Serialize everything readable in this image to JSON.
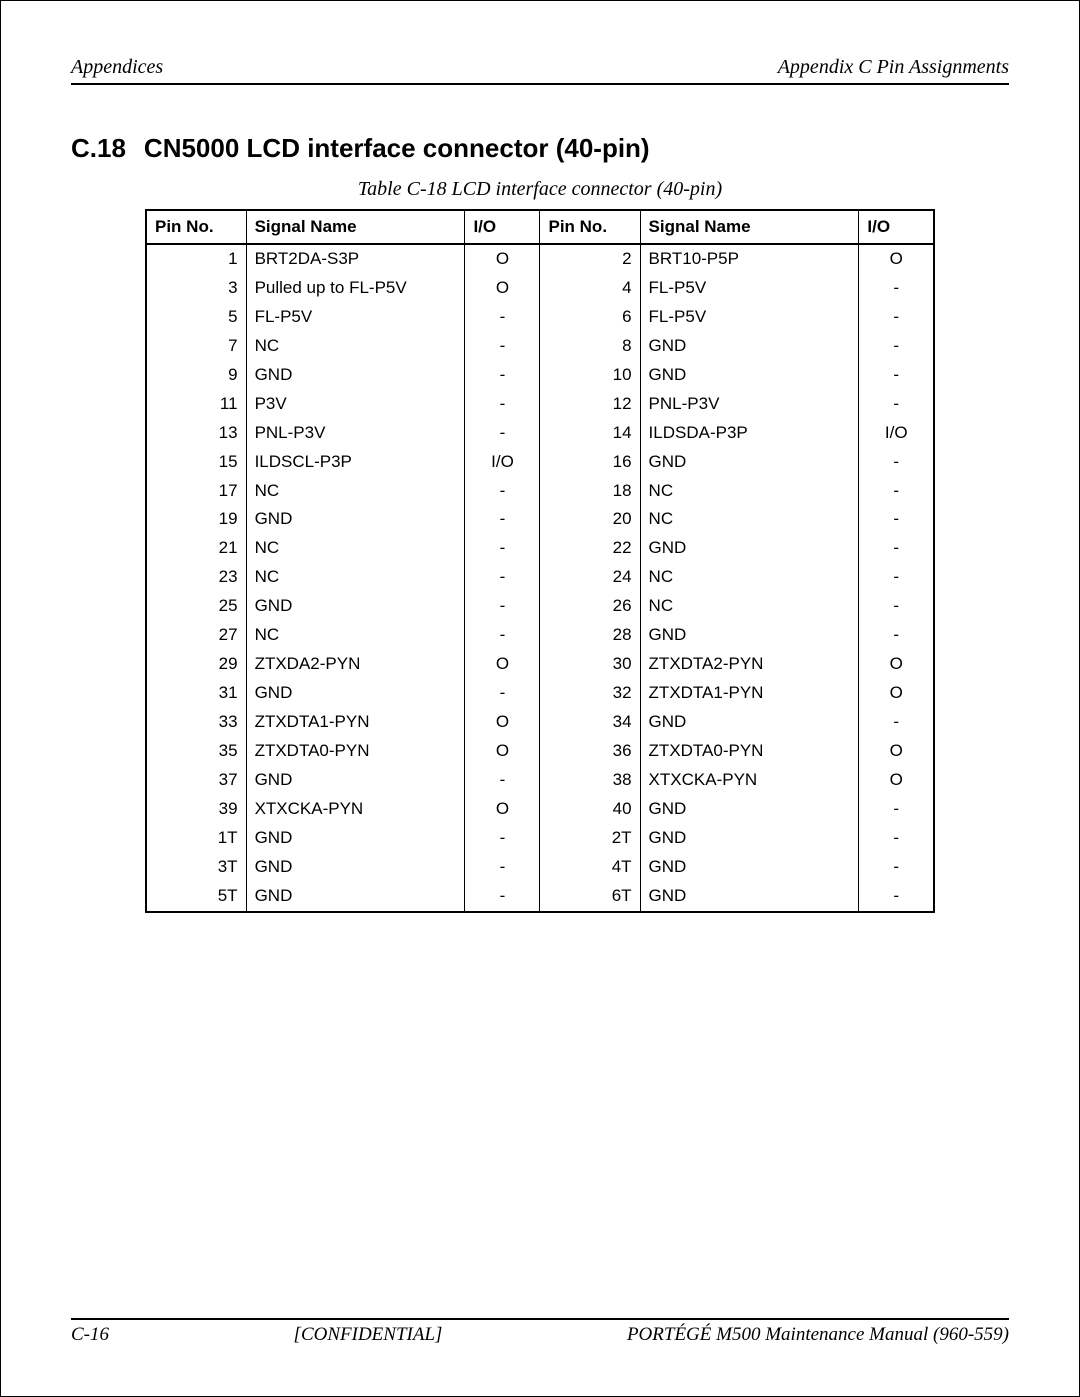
{
  "header": {
    "left": "Appendices",
    "right": "Appendix C  Pin Assignments"
  },
  "section": {
    "number": "C.18",
    "title": "CN5000  LCD interface connector (40-pin)"
  },
  "table": {
    "caption": "Table  C-18  LCD  interface connector (40-pin)",
    "columns": [
      "Pin No.",
      "Signal Name",
      "I/O",
      "Pin No.",
      "Signal Name",
      "I/O"
    ],
    "rows": [
      [
        "1",
        "BRT2DA-S3P",
        "O",
        "2",
        "BRT10-P5P",
        "O"
      ],
      [
        "3",
        "Pulled up to FL-P5V",
        "O",
        "4",
        "FL-P5V",
        "-"
      ],
      [
        "5",
        "FL-P5V",
        "-",
        "6",
        "FL-P5V",
        "-"
      ],
      [
        "7",
        "NC",
        "-",
        "8",
        "GND",
        "-"
      ],
      [
        "9",
        "GND",
        "-",
        "10",
        "GND",
        "-"
      ],
      [
        "11",
        "P3V",
        "-",
        "12",
        "PNL-P3V",
        "-"
      ],
      [
        "13",
        "PNL-P3V",
        "-",
        "14",
        "ILDSDA-P3P",
        "I/O"
      ],
      [
        "15",
        "ILDSCL-P3P",
        "I/O",
        "16",
        "GND",
        "-"
      ],
      [
        "17",
        "NC",
        "-",
        "18",
        "NC",
        "-"
      ],
      [
        "19",
        "GND",
        "-",
        "20",
        "NC",
        "-"
      ],
      [
        "21",
        "NC",
        "-",
        "22",
        "GND",
        "-"
      ],
      [
        "23",
        "NC",
        "-",
        "24",
        "NC",
        "-"
      ],
      [
        "25",
        "GND",
        "-",
        "26",
        "NC",
        "-"
      ],
      [
        "27",
        "NC",
        "-",
        "28",
        "GND",
        "-"
      ],
      [
        "29",
        "ZTXDA2-PYN",
        "O",
        "30",
        "ZTXDTA2-PYN",
        "O"
      ],
      [
        "31",
        "GND",
        "-",
        "32",
        "ZTXDTA1-PYN",
        "O"
      ],
      [
        "33",
        "ZTXDTA1-PYN",
        "O",
        "34",
        "GND",
        "-"
      ],
      [
        "35",
        "ZTXDTA0-PYN",
        "O",
        "36",
        "ZTXDTA0-PYN",
        "O"
      ],
      [
        "37",
        "GND",
        "-",
        "38",
        "XTXCKA-PYN",
        "O"
      ],
      [
        "39",
        "XTXCKA-PYN",
        "O",
        "40",
        "GND",
        "-"
      ],
      [
        "1T",
        "GND",
        "-",
        "2T",
        "GND",
        "-"
      ],
      [
        "3T",
        "GND",
        "-",
        "4T",
        "GND",
        "-"
      ],
      [
        "5T",
        "GND",
        "-",
        "6T",
        "GND",
        "-"
      ]
    ]
  },
  "footer": {
    "left": "C-16",
    "center": "[CONFIDENTIAL]",
    "right": "PORTÉGÉ M500 Maintenance Manual (960-559)"
  }
}
